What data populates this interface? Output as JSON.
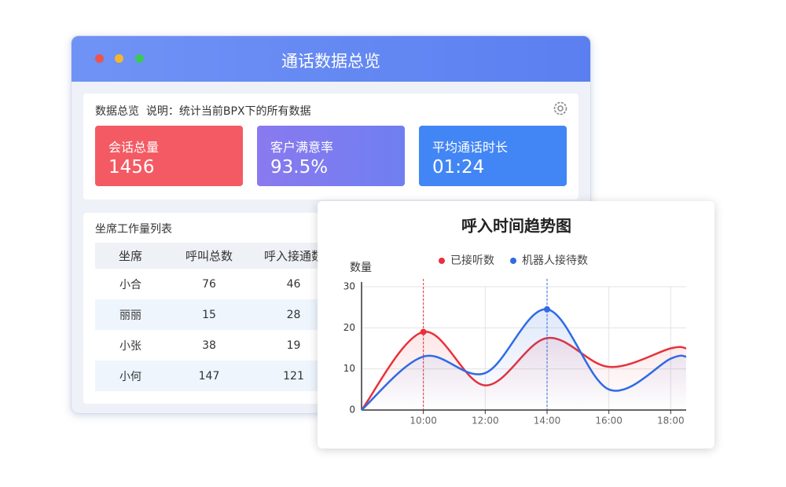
{
  "window": {
    "title": "通话数据总览"
  },
  "overview": {
    "title": "数据总览",
    "note": "说明：统计当前BPX下的所有数据",
    "cards": [
      {
        "label": "会话总量",
        "value": "1456"
      },
      {
        "label": "客户满意率",
        "value": "93.5%"
      },
      {
        "label": "平均通话时长",
        "value": "01:24"
      }
    ]
  },
  "table": {
    "title": "坐席工作量列表",
    "columns": [
      "坐席",
      "呼叫总数",
      "呼入接通数"
    ],
    "rows": [
      [
        "小合",
        76,
        46
      ],
      [
        "丽丽",
        15,
        28
      ],
      [
        "小张",
        38,
        19
      ],
      [
        "小何",
        147,
        121
      ]
    ]
  },
  "chart_data": {
    "type": "line",
    "title": "呼入时间趋势图",
    "y_label": "数量",
    "x": [
      8,
      10,
      12,
      14,
      16,
      18,
      18.5
    ],
    "xlim": [
      8,
      18.5
    ],
    "xticks": [
      {
        "value": 10,
        "label": "10:00"
      },
      {
        "value": 12,
        "label": "12:00"
      },
      {
        "value": 14,
        "label": "14:00"
      },
      {
        "value": 16,
        "label": "16:00"
      },
      {
        "value": 18,
        "label": "18:00"
      }
    ],
    "ylim": [
      0,
      30
    ],
    "yticks": [
      0,
      10,
      20,
      30
    ],
    "grid": true,
    "legend": "top",
    "series": [
      {
        "name": "已接听数",
        "color": "#e8313a",
        "values": [
          0,
          19,
          6,
          17.5,
          10.5,
          15,
          15
        ],
        "highlight_x": 10
      },
      {
        "name": "机器人接待数",
        "color": "#2f6be6",
        "values": [
          0,
          13,
          9,
          24.5,
          5,
          12.5,
          13
        ],
        "highlight_x": 14
      }
    ]
  }
}
